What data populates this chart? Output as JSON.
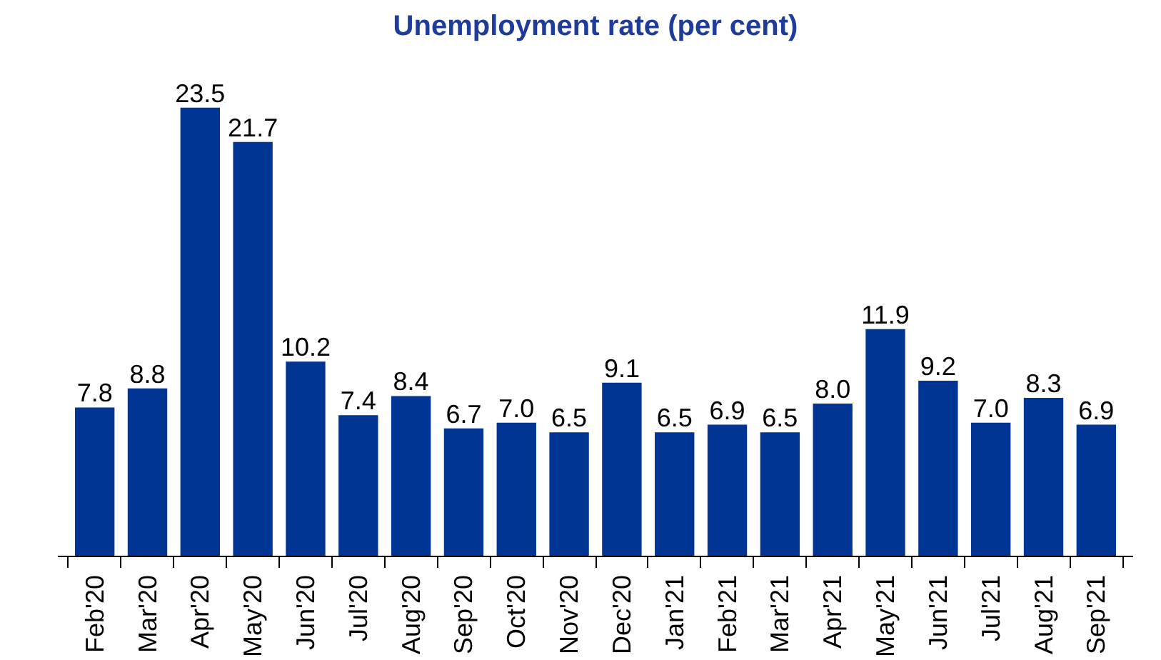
{
  "chart_data": {
    "type": "bar",
    "title": "Unemployment rate (per cent)",
    "categories": [
      "Feb'20",
      "Mar'20",
      "Apr'20",
      "May'20",
      "Jun'20",
      "Jul'20",
      "Aug'20",
      "Sep'20",
      "Oct'20",
      "Nov'20",
      "Dec'20",
      "Jan'21",
      "Feb'21",
      "Mar'21",
      "Apr'21",
      "May'21",
      "Jun'21",
      "Jul'21",
      "Aug'21",
      "Sep'21"
    ],
    "values": [
      7.8,
      8.8,
      23.5,
      21.7,
      10.2,
      7.4,
      8.4,
      6.7,
      7.0,
      6.5,
      9.1,
      6.5,
      6.9,
      6.5,
      8.0,
      11.9,
      9.2,
      7.0,
      8.3,
      6.9
    ],
    "value_labels": [
      "7.8",
      "8.8",
      "23.5",
      "21.7",
      "10.2",
      "7.4",
      "8.4",
      "6.7",
      "7.0",
      "6.5",
      "9.1",
      "6.5",
      "6.9",
      "6.5",
      "8.0",
      "11.9",
      "9.2",
      "7.0",
      "8.3",
      "6.9"
    ],
    "color": "#003594"
  }
}
